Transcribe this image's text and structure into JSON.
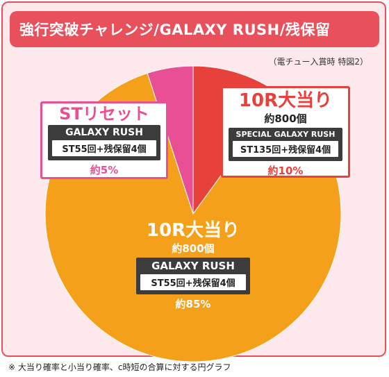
{
  "title": "強行突破チャレンジ/GALAXY RUSH/残保留",
  "source_note": "（電チュー入賞時 特図2）",
  "footnote": "※ 大当り確率と小当り確率、c時短の合算に対する円グラフ",
  "chart_data": {
    "type": "pie",
    "slices": [
      {
        "value": 10,
        "color": "#e8413c",
        "headline": "10R大当り",
        "payout": "約800個",
        "mode": "SPECIAL GALAXY RUSH",
        "detail": "ST135回+残保留4個",
        "percent_label": "約10%"
      },
      {
        "value": 85,
        "color": "#f5a01b",
        "headline": "10R大当り",
        "payout": "約800個",
        "mode": "GALAXY RUSH",
        "detail": "ST55回+残保留4個",
        "percent_label": "約85%"
      },
      {
        "value": 5,
        "color": "#e84f94",
        "headline": "STリセット",
        "payout": "",
        "mode": "GALAXY RUSH",
        "detail": "ST55回+残保留4個",
        "percent_label": "約5%"
      }
    ]
  }
}
